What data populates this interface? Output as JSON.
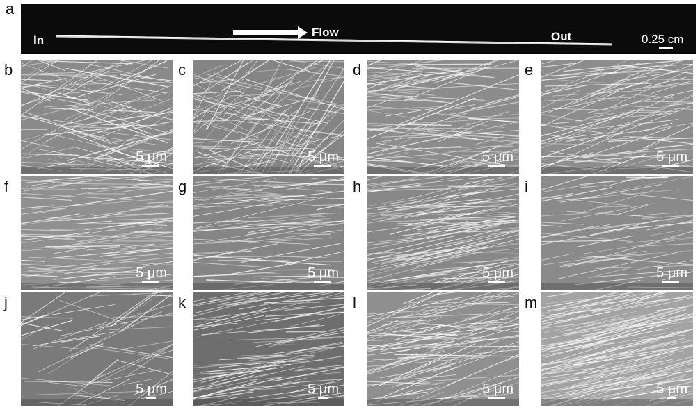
{
  "panels": {
    "a": {
      "label": "a",
      "in_label": "In",
      "out_label": "Out",
      "flow_label": "Flow",
      "scale_label": "0.25 cm"
    },
    "sem": [
      {
        "label": "b",
        "scale": "5 μm",
        "tone": "#8a8a8a",
        "density": 110,
        "angle": -6,
        "spread": 30
      },
      {
        "label": "c",
        "scale": "5 μm",
        "tone": "#858585",
        "density": 120,
        "angle": -20,
        "spread": 45
      },
      {
        "label": "d",
        "scale": "5 μm",
        "tone": "#8c8c8c",
        "density": 110,
        "angle": -8,
        "spread": 18
      },
      {
        "label": "e",
        "scale": "5 μm",
        "tone": "#8d8d8d",
        "density": 100,
        "angle": -8,
        "spread": 18
      },
      {
        "label": "f",
        "scale": "5 μm",
        "tone": "#909090",
        "density": 110,
        "angle": -3,
        "spread": 8
      },
      {
        "label": "g",
        "scale": "5 μm",
        "tone": "#858585",
        "density": 80,
        "angle": -4,
        "spread": 10
      },
      {
        "label": "h",
        "scale": "5 μm",
        "tone": "#888888",
        "density": 130,
        "angle": -8,
        "spread": 8
      },
      {
        "label": "i",
        "scale": "5 μm",
        "tone": "#8a8a8a",
        "density": 60,
        "angle": -6,
        "spread": 12
      },
      {
        "label": "j",
        "scale": "5 μm",
        "tone": "#7a7a7a",
        "density": 50,
        "angle": -10,
        "spread": 30
      },
      {
        "label": "k",
        "scale": "5 μm",
        "tone": "#6e6e6e",
        "density": 90,
        "angle": -8,
        "spread": 8
      },
      {
        "label": "l",
        "scale": "5 μm",
        "tone": "#8f8f8f",
        "density": 110,
        "angle": -10,
        "spread": 15
      },
      {
        "label": "m",
        "scale": "5 μm",
        "tone": "#a3a3a3",
        "density": 150,
        "angle": -12,
        "spread": 6
      }
    ]
  }
}
